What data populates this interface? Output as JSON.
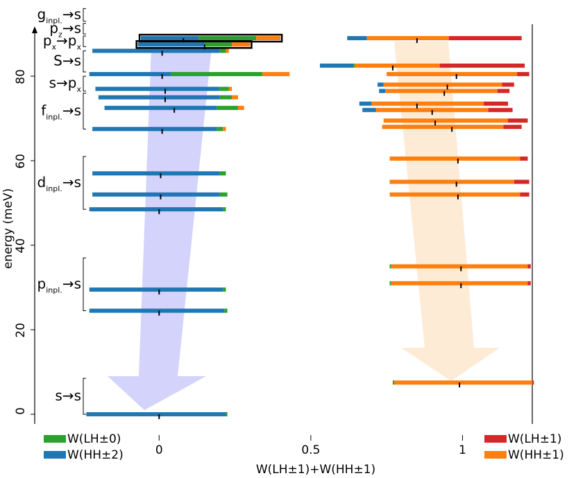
{
  "chart_data": {
    "type": "floating-stacked-bar",
    "xlabel": "W(LH±1)+W(HH±1)",
    "ylabel": "energy (meV)",
    "xlim": [
      -0.25,
      1.23
    ],
    "xticks": [
      0,
      0.5,
      1
    ],
    "ylim": [
      -2.3,
      91.8
    ],
    "yticks": [
      0,
      20,
      40,
      60,
      80
    ],
    "energy": [
      0,
      24.5,
      29.5,
      48.5,
      52,
      57,
      67.5,
      72.5,
      75,
      77,
      80.5,
      86,
      89,
      87.5,
      7.5,
      31,
      35,
      52,
      55,
      60.5,
      68,
      69.5,
      72,
      73.5,
      76.5,
      78,
      80.5,
      82.5,
      89
    ],
    "start": [
      -0.24,
      -0.23,
      -0.23,
      -0.23,
      -0.22,
      -0.22,
      -0.22,
      -0.18,
      -0.2,
      -0.21,
      -0.23,
      -0.22,
      -0.06,
      -0.07,
      0.77,
      0.76,
      0.76,
      0.76,
      0.76,
      0.76,
      0.735,
      0.74,
      0.67,
      0.66,
      0.725,
      0.72,
      0.75,
      0.53,
      0.62
    ],
    "markers": [
      0,
      0,
      0,
      0,
      0.005,
      0.005,
      0.01,
      0.05,
      0.02,
      0.02,
      0.01,
      0.01,
      0.08,
      0.15,
      0.99,
      0.995,
      0.995,
      0.985,
      0.98,
      0.985,
      0.965,
      0.91,
      0.9,
      0.85,
      0.94,
      0.95,
      0.98,
      0.77,
      0.85
    ],
    "series": [
      {
        "name": "W(LH±0)",
        "color": "#2ca02c",
        "values": [
          0.005,
          0.01,
          0.01,
          0.01,
          0.025,
          0.02,
          0.02,
          0.07,
          0.04,
          0.03,
          0.3,
          0.02,
          0.19,
          0.09,
          0.005,
          0.005,
          0.005,
          0,
          0,
          0,
          0,
          0,
          0,
          0,
          0,
          0,
          0,
          0.005,
          0
        ]
      },
      {
        "name": "W(HH±2)",
        "color": "#1f77b4",
        "values": [
          0.46,
          0.445,
          0.44,
          0.44,
          0.42,
          0.42,
          0.41,
          0.37,
          0.4,
          0.41,
          0.27,
          0.42,
          0.19,
          0.22,
          0,
          0,
          0,
          0,
          0,
          0,
          0,
          0,
          0.045,
          0.04,
          0.02,
          0.02,
          0,
          0.11,
          0.065
        ]
      },
      {
        "name": "W(LH±1)",
        "color": "#d62728",
        "values": [
          0,
          0,
          0,
          0,
          0,
          0,
          0,
          0,
          0,
          0,
          0,
          0,
          0,
          0,
          0.005,
          0.01,
          0.01,
          0.03,
          0.05,
          0.025,
          0.06,
          0.065,
          0.08,
          0.08,
          0.04,
          0.04,
          0.04,
          0.28,
          0.24
        ]
      },
      {
        "name": "W(HH±1)",
        "color": "#ff7f0e",
        "values": [
          0,
          0,
          0,
          0,
          0,
          0,
          0.01,
          0.02,
          0.02,
          0.01,
          0.09,
          0.01,
          0.08,
          0.06,
          0.455,
          0.45,
          0.45,
          0.43,
          0.41,
          0.43,
          0.4,
          0.41,
          0.37,
          0.37,
          0.37,
          0.39,
          0.43,
          0.28,
          0.27
        ]
      }
    ],
    "transitions": [
      {
        "parts": [
          {
            "t": "g"
          },
          {
            "sub": "inpl."
          },
          {
            "t": "→s"
          }
        ],
        "range": [
          93,
          96
        ]
      },
      {
        "parts": [
          {
            "t": "p"
          },
          {
            "sub": "z"
          },
          {
            "t": "→s"
          }
        ],
        "range": [
          90,
          92.5
        ]
      },
      {
        "parts": [
          {
            "t": "p"
          },
          {
            "sub": "x"
          },
          {
            "t": "→p"
          },
          {
            "sub": "x"
          }
        ],
        "range": [
          87,
          89.5
        ]
      },
      {
        "parts": [
          {
            "t": "S→s"
          }
        ],
        "range": [
          81,
          86
        ]
      },
      {
        "parts": [
          {
            "t": "s→p"
          },
          {
            "sub": "x"
          }
        ],
        "range": [
          76.5,
          80
        ]
      },
      {
        "parts": [
          {
            "t": "f"
          },
          {
            "sub": "inpl."
          },
          {
            "t": "→s"
          }
        ],
        "range": [
          67.5,
          76
        ]
      },
      {
        "parts": [
          {
            "t": "d"
          },
          {
            "sub": "inpl."
          },
          {
            "t": "→s"
          }
        ],
        "range": [
          48.5,
          61
        ]
      },
      {
        "parts": [
          {
            "t": "p"
          },
          {
            "sub": "inpl."
          },
          {
            "t": "→s"
          }
        ],
        "range": [
          24.5,
          37
        ]
      },
      {
        "parts": [
          {
            "t": "s→s"
          }
        ],
        "range": [
          0,
          8.5
        ]
      }
    ]
  }
}
